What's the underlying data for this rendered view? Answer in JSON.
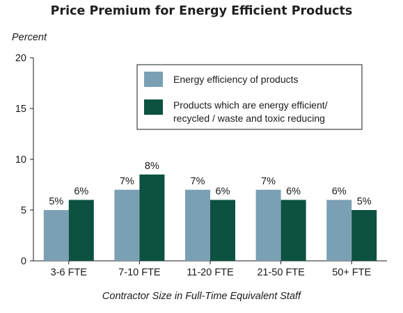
{
  "chart_data": {
    "type": "bar",
    "title": "Price Premium for Energy Efficient Products",
    "ylabel": "Percent",
    "xlabel": "Contractor Size in Full-Time Equivalent Staff",
    "categories": [
      "3-6 FTE",
      "7-10 FTE",
      "11-20 FTE",
      "21-50 FTE",
      "50+ FTE"
    ],
    "ylim": [
      0,
      20
    ],
    "yticks": [
      0,
      5,
      10,
      15,
      20
    ],
    "grid": false,
    "legend_position": "top-right",
    "series": [
      {
        "name": "Energy efficiency of products",
        "values": [
          5,
          7,
          7,
          7,
          6
        ],
        "labels": [
          "5%",
          "7%",
          "7%",
          "7%",
          "6%"
        ],
        "color": "#7ba0b4"
      },
      {
        "name": "Products which are energy efficient/ recycled / waste and toxic reducing",
        "legend_lines": [
          "Products which are energy efficient/",
          "recycled / waste and toxic reducing"
        ],
        "values": [
          6,
          8.5,
          6,
          6,
          5
        ],
        "labels": [
          "6%",
          "8%",
          "6%",
          "6%",
          "5%"
        ],
        "color": "#0d5140"
      }
    ]
  }
}
